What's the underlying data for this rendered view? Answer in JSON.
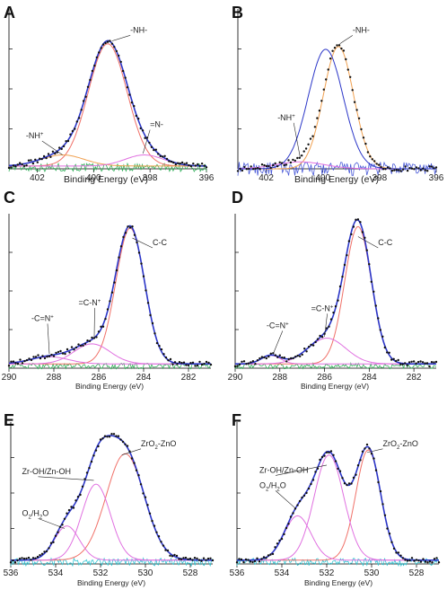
{
  "colors": {
    "envelope": "#2b36c8",
    "data_points": "#111111",
    "residual_green": "#32b05a",
    "residual_blue": "#4a5ad8",
    "residual_cyan": "#2ec4d2",
    "peak_red": "#f07068",
    "peak_pink": "#e070e0",
    "peak_orange": "#f0a050"
  },
  "chart_data": [
    {
      "panel": "A",
      "type": "line",
      "xlabel": "Binding Energy (eV)",
      "xlim": [
        403,
        396
      ],
      "xticks": [
        402,
        400,
        398,
        396
      ],
      "ylim": [
        0,
        1.15
      ],
      "baseline": 0.02,
      "components": [
        {
          "label": "-NH-",
          "center": 399.5,
          "fwhm": 1.62,
          "height": 0.88,
          "color": "#f07068"
        },
        {
          "label": "-NH+",
          "center": 401.1,
          "fwhm": 1.8,
          "height": 0.08,
          "color": "#f0a050"
        },
        {
          "label": "=N-",
          "center": 398.2,
          "fwhm": 1.6,
          "height": 0.08,
          "color": "#e070e0"
        }
      ],
      "residual": {
        "color": "#32b05a",
        "amplitude": 0.03
      },
      "annotations": [
        {
          "text": "-NH-",
          "x": 398.7,
          "y": 0.98,
          "arrow_x": 399.35,
          "arrow_y": 0.92
        },
        {
          "text": "-NH+",
          "x": 402.4,
          "y": 0.22,
          "arrow_x": 401.1,
          "arrow_y": 0.1
        },
        {
          "text": "=N-",
          "x": 398.0,
          "y": 0.3,
          "arrow_x": 398.25,
          "arrow_y": 0.11
        }
      ]
    },
    {
      "panel": "B",
      "type": "line",
      "xlabel": "Binding Energy (eV)",
      "xlim": [
        403,
        396
      ],
      "xticks": [
        402,
        400,
        398,
        396
      ],
      "ylim": [
        0,
        1.15
      ],
      "baseline": 0.0,
      "components": [
        {
          "label": "-NH-",
          "center": 399.45,
          "fwhm": 1.25,
          "height": 0.88,
          "color": "#f0a050"
        },
        {
          "label": "-NH+",
          "center": 400.8,
          "fwhm": 2.0,
          "height": 0.05,
          "color": "#e070e0"
        },
        {
          "label": "",
          "center": 399.9,
          "fwhm": 1.45,
          "height": 0.86,
          "color": "#2b36c8"
        }
      ],
      "residual": {
        "color": "#4a5ad8",
        "amplitude": 0.05
      },
      "annotations": [
        {
          "text": "-NH-",
          "x": 398.95,
          "y": 0.98,
          "arrow_x": 399.4,
          "arrow_y": 0.9
        },
        {
          "text": "-NH+",
          "x": 401.6,
          "y": 0.35,
          "arrow_x": 400.8,
          "arrow_y": 0.08
        }
      ]
    },
    {
      "panel": "C",
      "type": "line",
      "xlabel": "Binding Energy (eV)",
      "xlim": [
        290,
        281
      ],
      "xticks": [
        290,
        288,
        286,
        284,
        282
      ],
      "ylim": [
        0,
        1.08
      ],
      "baseline": 0.03,
      "components": [
        {
          "label": "C-C",
          "center": 284.6,
          "fwhm": 1.5,
          "height": 0.95,
          "color": "#f07068"
        },
        {
          "label": "=C-N+",
          "center": 286.3,
          "fwhm": 1.9,
          "height": 0.14,
          "color": "#e070e0"
        },
        {
          "label": "-C=N+",
          "center": 288.2,
          "fwhm": 2.0,
          "height": 0.05,
          "color": "#e070e0"
        }
      ],
      "residual": {
        "color": "#32b05a",
        "amplitude": 0.02
      },
      "annotations": [
        {
          "text": "C-C",
          "x": 283.6,
          "y": 0.86,
          "arrow_x": 284.5,
          "arrow_y": 0.91
        },
        {
          "text": "=C-N+",
          "x": 286.9,
          "y": 0.44,
          "arrow_x": 286.2,
          "arrow_y": 0.22
        },
        {
          "text": "-C=N+",
          "x": 289.0,
          "y": 0.33,
          "arrow_x": 288.2,
          "arrow_y": 0.1
        }
      ]
    },
    {
      "panel": "D",
      "type": "line",
      "xlabel": "Binding Energy (eV)",
      "xlim": [
        290,
        281
      ],
      "xticks": [
        290,
        288,
        286,
        284,
        282
      ],
      "ylim": [
        0,
        1.08
      ],
      "baseline": 0.03,
      "components": [
        {
          "label": "C-C",
          "center": 284.5,
          "fwhm": 1.4,
          "height": 0.96,
          "color": "#f07068"
        },
        {
          "label": "=C-N+",
          "center": 285.9,
          "fwhm": 2.0,
          "height": 0.18,
          "color": "#e070e0"
        },
        {
          "label": "-C=N+",
          "center": 288.4,
          "fwhm": 1.0,
          "height": 0.06,
          "color": "#e070e0"
        }
      ],
      "residual": {
        "color": "#32b05a",
        "amplitude": 0.02
      },
      "annotations": [
        {
          "text": "C-C",
          "x": 283.6,
          "y": 0.86,
          "arrow_x": 284.5,
          "arrow_y": 0.92
        },
        {
          "text": "=C-N+",
          "x": 286.6,
          "y": 0.4,
          "arrow_x": 286.0,
          "arrow_y": 0.22
        },
        {
          "text": "-C=N+",
          "x": 288.6,
          "y": 0.28,
          "arrow_x": 288.3,
          "arrow_y": 0.1
        }
      ]
    },
    {
      "panel": "E",
      "type": "line",
      "xlabel": "Binding Energy (eV)",
      "xlim": [
        536,
        527
      ],
      "xticks": [
        536,
        534,
        532,
        530,
        528
      ],
      "ylim": [
        0,
        1.12
      ],
      "baseline": 0.03,
      "components": [
        {
          "label": "ZrO2-ZnO",
          "center": 530.9,
          "fwhm": 2.0,
          "height": 0.84,
          "color": "#f07068"
        },
        {
          "label": "Zr-OH/Zn-OH",
          "center": 532.2,
          "fwhm": 1.5,
          "height": 0.6,
          "color": "#e070e0"
        },
        {
          "label": "O2/H2O",
          "center": 533.5,
          "fwhm": 1.3,
          "height": 0.27,
          "color": "#e070e0"
        }
      ],
      "residual": {
        "color": "#2ec4d2",
        "amplitude": 0.03
      },
      "annotations": [
        {
          "text": "ZrO2-ZnO",
          "x": 530.2,
          "y": 0.93,
          "arrow_x": 531.05,
          "arrow_y": 0.86
        },
        {
          "text": "Zr-OH/Zn-OH",
          "x": 535.5,
          "y": 0.71,
          "arrow_x": 532.3,
          "arrow_y": 0.66
        },
        {
          "text": "O2/H2O",
          "x": 535.5,
          "y": 0.38,
          "arrow_x": 533.6,
          "arrow_y": 0.28
        }
      ]
    },
    {
      "panel": "F",
      "type": "line",
      "xlabel": "Binding Energy (eV)",
      "xlim": [
        536,
        527
      ],
      "xticks": [
        536,
        534,
        532,
        530,
        528
      ],
      "ylim": [
        0,
        1.12
      ],
      "baseline": 0.03,
      "components": [
        {
          "label": "ZrO2-ZnO",
          "center": 530.15,
          "fwhm": 1.3,
          "height": 0.87,
          "color": "#f07068"
        },
        {
          "label": "Zr-OH/Zn-OH",
          "center": 531.9,
          "fwhm": 1.55,
          "height": 0.83,
          "color": "#e070e0"
        },
        {
          "label": "O2/H2O",
          "center": 533.3,
          "fwhm": 1.4,
          "height": 0.35,
          "color": "#e070e0"
        }
      ],
      "residual": {
        "color": "#2ec4d2",
        "amplitude": 0.03
      },
      "annotations": [
        {
          "text": "ZrO2-ZnO",
          "x": 529.5,
          "y": 0.93,
          "arrow_x": 530.2,
          "arrow_y": 0.88
        },
        {
          "text": "Zr-OH/Zn-OH",
          "x": 535.0,
          "y": 0.72,
          "arrow_x": 532.0,
          "arrow_y": 0.78
        },
        {
          "text": "O2/H2O",
          "x": 535.0,
          "y": 0.6,
          "arrow_x": 533.4,
          "arrow_y": 0.44
        }
      ]
    }
  ]
}
